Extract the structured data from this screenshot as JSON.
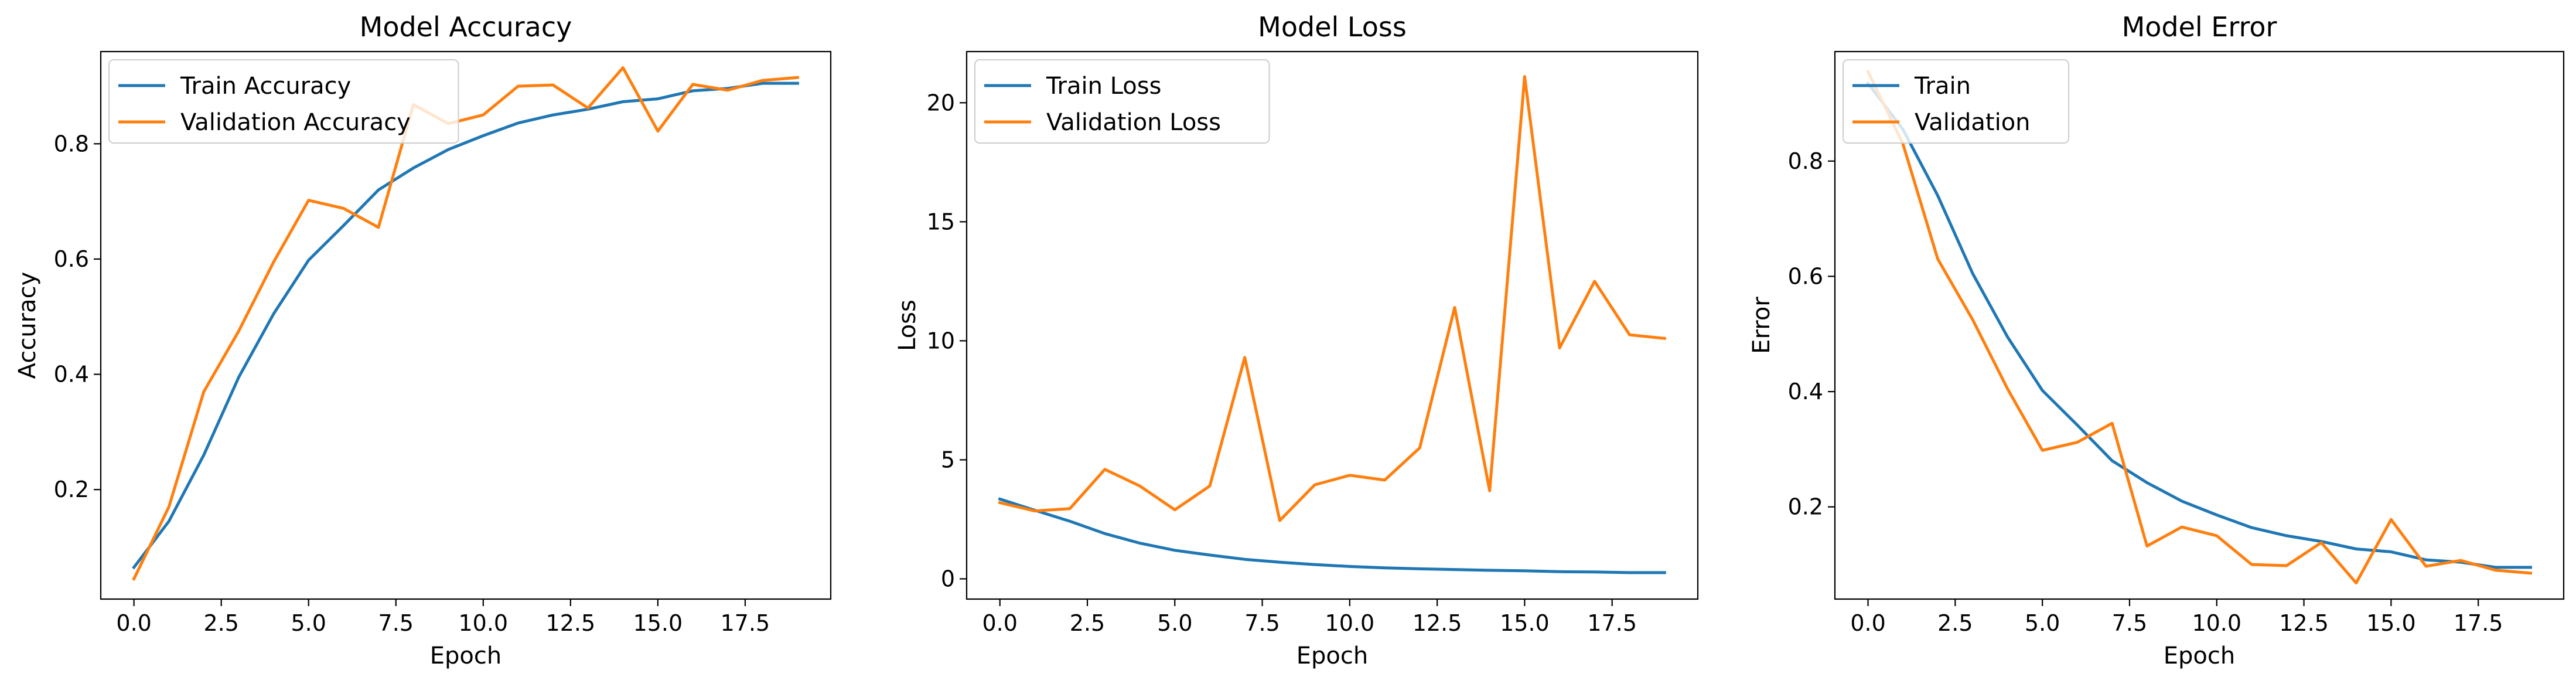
{
  "colors": {
    "train": "#1f77b4",
    "validation": "#ff7f0e"
  },
  "chart_data": [
    {
      "type": "line",
      "title": "Model Accuracy",
      "xlabel": "Epoch",
      "ylabel": "Accuracy",
      "xlim": [
        -0.95,
        19.95
      ],
      "ylim": [
        0.01,
        0.96
      ],
      "xticks": [
        0.0,
        2.5,
        5.0,
        7.5,
        10.0,
        12.5,
        15.0,
        17.5
      ],
      "xtick_labels": [
        "0.0",
        "2.5",
        "5.0",
        "7.5",
        "10.0",
        "12.5",
        "15.0",
        "17.5"
      ],
      "yticks": [
        0.2,
        0.4,
        0.6,
        0.8
      ],
      "ytick_labels": [
        "0.2",
        "0.4",
        "0.6",
        "0.8"
      ],
      "legend_position": "upper-left",
      "x": [
        0,
        1,
        2,
        3,
        4,
        5,
        6,
        7,
        8,
        9,
        10,
        11,
        12,
        13,
        14,
        15,
        16,
        17,
        18,
        19
      ],
      "series": [
        {
          "name": "Train Accuracy",
          "color": "#1f77b4",
          "values": [
            0.065,
            0.145,
            0.26,
            0.395,
            0.505,
            0.598,
            0.658,
            0.72,
            0.758,
            0.79,
            0.814,
            0.836,
            0.85,
            0.86,
            0.873,
            0.878,
            0.892,
            0.896,
            0.905,
            0.905
          ]
        },
        {
          "name": "Validation Accuracy",
          "color": "#ff7f0e",
          "values": [
            0.045,
            0.17,
            0.37,
            0.475,
            0.595,
            0.702,
            0.688,
            0.655,
            0.868,
            0.835,
            0.85,
            0.9,
            0.902,
            0.862,
            0.932,
            0.822,
            0.903,
            0.893,
            0.91,
            0.915
          ]
        }
      ]
    },
    {
      "type": "line",
      "title": "Model Loss",
      "xlabel": "Epoch",
      "ylabel": "Loss",
      "xlim": [
        -0.95,
        19.95
      ],
      "ylim": [
        -0.85,
        22.15
      ],
      "xticks": [
        0.0,
        2.5,
        5.0,
        7.5,
        10.0,
        12.5,
        15.0,
        17.5
      ],
      "xtick_labels": [
        "0.0",
        "2.5",
        "5.0",
        "7.5",
        "10.0",
        "12.5",
        "15.0",
        "17.5"
      ],
      "yticks": [
        0,
        5,
        10,
        15,
        20
      ],
      "ytick_labels": [
        "0",
        "5",
        "10",
        "15",
        "20"
      ],
      "legend_position": "upper-left",
      "x": [
        0,
        1,
        2,
        3,
        4,
        5,
        6,
        7,
        8,
        9,
        10,
        11,
        12,
        13,
        14,
        15,
        16,
        17,
        18,
        19
      ],
      "series": [
        {
          "name": "Train Loss",
          "color": "#1f77b4",
          "values": [
            3.35,
            2.88,
            2.42,
            1.9,
            1.5,
            1.2,
            1.0,
            0.82,
            0.7,
            0.6,
            0.52,
            0.46,
            0.42,
            0.39,
            0.36,
            0.34,
            0.3,
            0.29,
            0.26,
            0.26
          ]
        },
        {
          "name": "Validation Loss",
          "color": "#ff7f0e",
          "values": [
            3.2,
            2.85,
            2.95,
            4.6,
            3.9,
            2.9,
            3.9,
            9.3,
            2.45,
            3.95,
            4.35,
            4.15,
            5.5,
            11.4,
            3.7,
            21.1,
            9.7,
            12.5,
            10.25,
            10.1
          ]
        }
      ]
    },
    {
      "type": "line",
      "title": "Model Error",
      "xlabel": "Epoch",
      "ylabel": "Error",
      "xlim": [
        -0.95,
        19.95
      ],
      "ylim": [
        0.04,
        0.99
      ],
      "xticks": [
        0.0,
        2.5,
        5.0,
        7.5,
        10.0,
        12.5,
        15.0,
        17.5
      ],
      "xtick_labels": [
        "0.0",
        "2.5",
        "5.0",
        "7.5",
        "10.0",
        "12.5",
        "15.0",
        "17.5"
      ],
      "yticks": [
        0.2,
        0.4,
        0.6,
        0.8
      ],
      "ytick_labels": [
        "0.2",
        "0.4",
        "0.6",
        "0.8"
      ],
      "legend_position": "upper-left",
      "x": [
        0,
        1,
        2,
        3,
        4,
        5,
        6,
        7,
        8,
        9,
        10,
        11,
        12,
        13,
        14,
        15,
        16,
        17,
        18,
        19
      ],
      "series": [
        {
          "name": "Train",
          "color": "#1f77b4",
          "values": [
            0.935,
            0.855,
            0.74,
            0.605,
            0.495,
            0.402,
            0.342,
            0.28,
            0.242,
            0.21,
            0.186,
            0.164,
            0.15,
            0.14,
            0.127,
            0.122,
            0.108,
            0.104,
            0.095,
            0.095
          ]
        },
        {
          "name": "Validation",
          "color": "#ff7f0e",
          "values": [
            0.955,
            0.83,
            0.63,
            0.525,
            0.405,
            0.298,
            0.312,
            0.345,
            0.132,
            0.165,
            0.15,
            0.1,
            0.098,
            0.138,
            0.068,
            0.178,
            0.097,
            0.107,
            0.09,
            0.085
          ]
        }
      ]
    }
  ]
}
